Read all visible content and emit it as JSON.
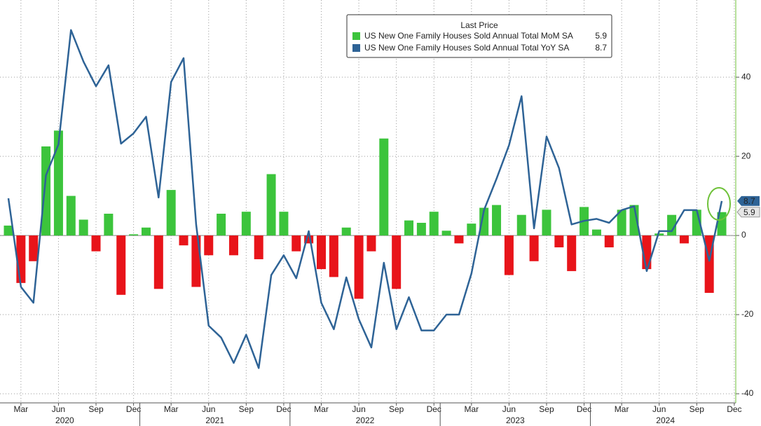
{
  "chart_data": {
    "type": "bar_line",
    "legend_title": "Last Price",
    "categories": [
      null,
      "Mar",
      null,
      null,
      "Jun",
      null,
      null,
      "Sep",
      null,
      null,
      "Dec",
      null,
      null,
      "Mar",
      null,
      null,
      "Jun",
      null,
      null,
      "Sep",
      null,
      null,
      "Dec",
      null,
      null,
      "Mar",
      null,
      null,
      "Jun",
      null,
      null,
      "Sep",
      null,
      null,
      "Dec",
      null,
      null,
      "Mar",
      null,
      null,
      "Jun",
      null,
      null,
      "Sep",
      null,
      null,
      "Dec",
      null,
      null,
      "Mar",
      null,
      null,
      "Jun",
      null,
      null,
      "Sep",
      null,
      null,
      "Dec"
    ],
    "years": [
      "2020",
      "2021",
      "2022",
      "2023",
      "2024"
    ],
    "series": [
      {
        "name": "US New One Family Houses Sold Annual Total MoM SA",
        "last_label": "5.9",
        "color": "#3cc43c",
        "negative_color": "#e8141a",
        "values": [
          2.5,
          -12,
          -6.5,
          22.5,
          26.5,
          10,
          4,
          -4,
          5.5,
          -15,
          0.3,
          2,
          -13.5,
          11.5,
          -2.5,
          -13,
          -5,
          5.5,
          -5,
          6,
          -6,
          15.5,
          6,
          -4,
          -2,
          -8.5,
          -10.5,
          2,
          -16,
          -4,
          24.5,
          -13.5,
          3.8,
          3.2,
          6,
          1.2,
          -2,
          3,
          7,
          7.7,
          -10,
          5.2,
          -6.5,
          6.5,
          -3,
          -9,
          7.2,
          1.5,
          -3,
          6.5,
          7.7,
          -8.5,
          0.5,
          5.2,
          -2,
          6.5,
          -14.5,
          5.9,
          null
        ]
      },
      {
        "name": "US New One Family Houses Sold Annual Total YoY SA",
        "last_label": "8.7",
        "color": "#2e6396",
        "values": [
          9.4,
          -13,
          -17,
          15.2,
          23,
          51.9,
          43.9,
          37.7,
          43,
          23.2,
          25.8,
          30,
          9.6,
          38.8,
          44.8,
          2.8,
          -22.8,
          -25.8,
          -32.2,
          -25.1,
          -33.5,
          -10,
          -5,
          -10.8,
          1.1,
          -17,
          -23.7,
          -10.6,
          -21.2,
          -28.3,
          -6.9,
          -23.7,
          -15.6,
          -24,
          -24,
          -20,
          -20,
          -9.6,
          6.4,
          14.3,
          22.8,
          35.2,
          1.8,
          25,
          17,
          2.8,
          3.7,
          4.2,
          3.2,
          6.4,
          7.4,
          -9,
          1.1,
          1.1,
          6.4,
          6.4,
          -6.4,
          8.7,
          null
        ]
      }
    ],
    "ylim": [
      -42.3,
      59.5
    ],
    "yticks": [
      -40,
      -20,
      0,
      20,
      40
    ],
    "grid": true
  }
}
